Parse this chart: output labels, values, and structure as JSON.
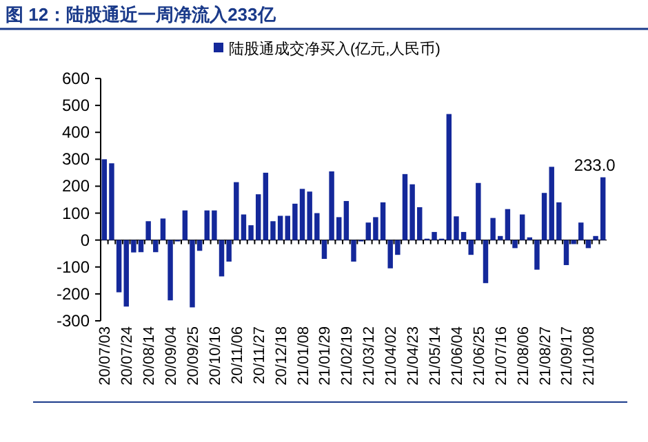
{
  "chart_data": {
    "type": "bar",
    "title": "图 12：陆股通近一周净流入233亿",
    "categories": [
      "20/07/03",
      null,
      null,
      "20/07/24",
      null,
      null,
      "20/08/14",
      null,
      null,
      "20/09/04",
      null,
      null,
      "20/09/25",
      null,
      null,
      "20/10/16",
      null,
      null,
      "20/11/06",
      null,
      null,
      "20/11/27",
      null,
      null,
      "20/12/18",
      null,
      null,
      "21/01/08",
      null,
      null,
      "21/01/29",
      null,
      null,
      "21/02/19",
      null,
      null,
      "21/03/12",
      null,
      null,
      "21/04/02",
      null,
      null,
      "21/04/23",
      null,
      null,
      "21/05/14",
      null,
      null,
      "21/06/04",
      null,
      null,
      "21/06/25",
      null,
      null,
      "21/07/16",
      null,
      null,
      "21/08/06",
      null,
      null,
      "21/08/27",
      null,
      null,
      "21/09/17",
      null,
      null,
      "21/10/08",
      null,
      null
    ],
    "series": [
      {
        "name": "陆股通成交净买入(亿元,人民币)",
        "color": "#14289a",
        "values": [
          300,
          285,
          -194,
          -247,
          -46,
          -45,
          70,
          -45,
          80,
          -224,
          -5,
          110,
          -250,
          -40,
          110,
          110,
          -135,
          -80,
          215,
          95,
          55,
          170,
          250,
          70,
          90,
          90,
          135,
          190,
          180,
          100,
          -70,
          255,
          85,
          145,
          -80,
          -5,
          65,
          85,
          140,
          -105,
          -55,
          245,
          207,
          122,
          5,
          30,
          5,
          468,
          88,
          30,
          -55,
          212,
          -160,
          82,
          15,
          115,
          -30,
          95,
          10,
          -110,
          175,
          272,
          140,
          -93,
          -15,
          65,
          -30,
          15,
          233
        ],
        "value_labels": [
          null,
          null,
          null,
          null,
          null,
          null,
          null,
          null,
          null,
          null,
          null,
          null,
          null,
          null,
          null,
          null,
          null,
          null,
          null,
          null,
          null,
          null,
          null,
          null,
          null,
          null,
          null,
          null,
          null,
          null,
          null,
          null,
          null,
          null,
          null,
          null,
          null,
          null,
          null,
          null,
          null,
          null,
          null,
          null,
          null,
          null,
          null,
          null,
          null,
          null,
          null,
          null,
          null,
          null,
          null,
          null,
          null,
          null,
          null,
          null,
          null,
          null,
          null,
          null,
          null,
          null,
          null,
          null,
          "233.0"
        ]
      }
    ],
    "ylim": [
      -300,
      600
    ],
    "yticks": [
      -300,
      -200,
      -100,
      0,
      100,
      200,
      300,
      400,
      500,
      600
    ],
    "legend": "top"
  }
}
